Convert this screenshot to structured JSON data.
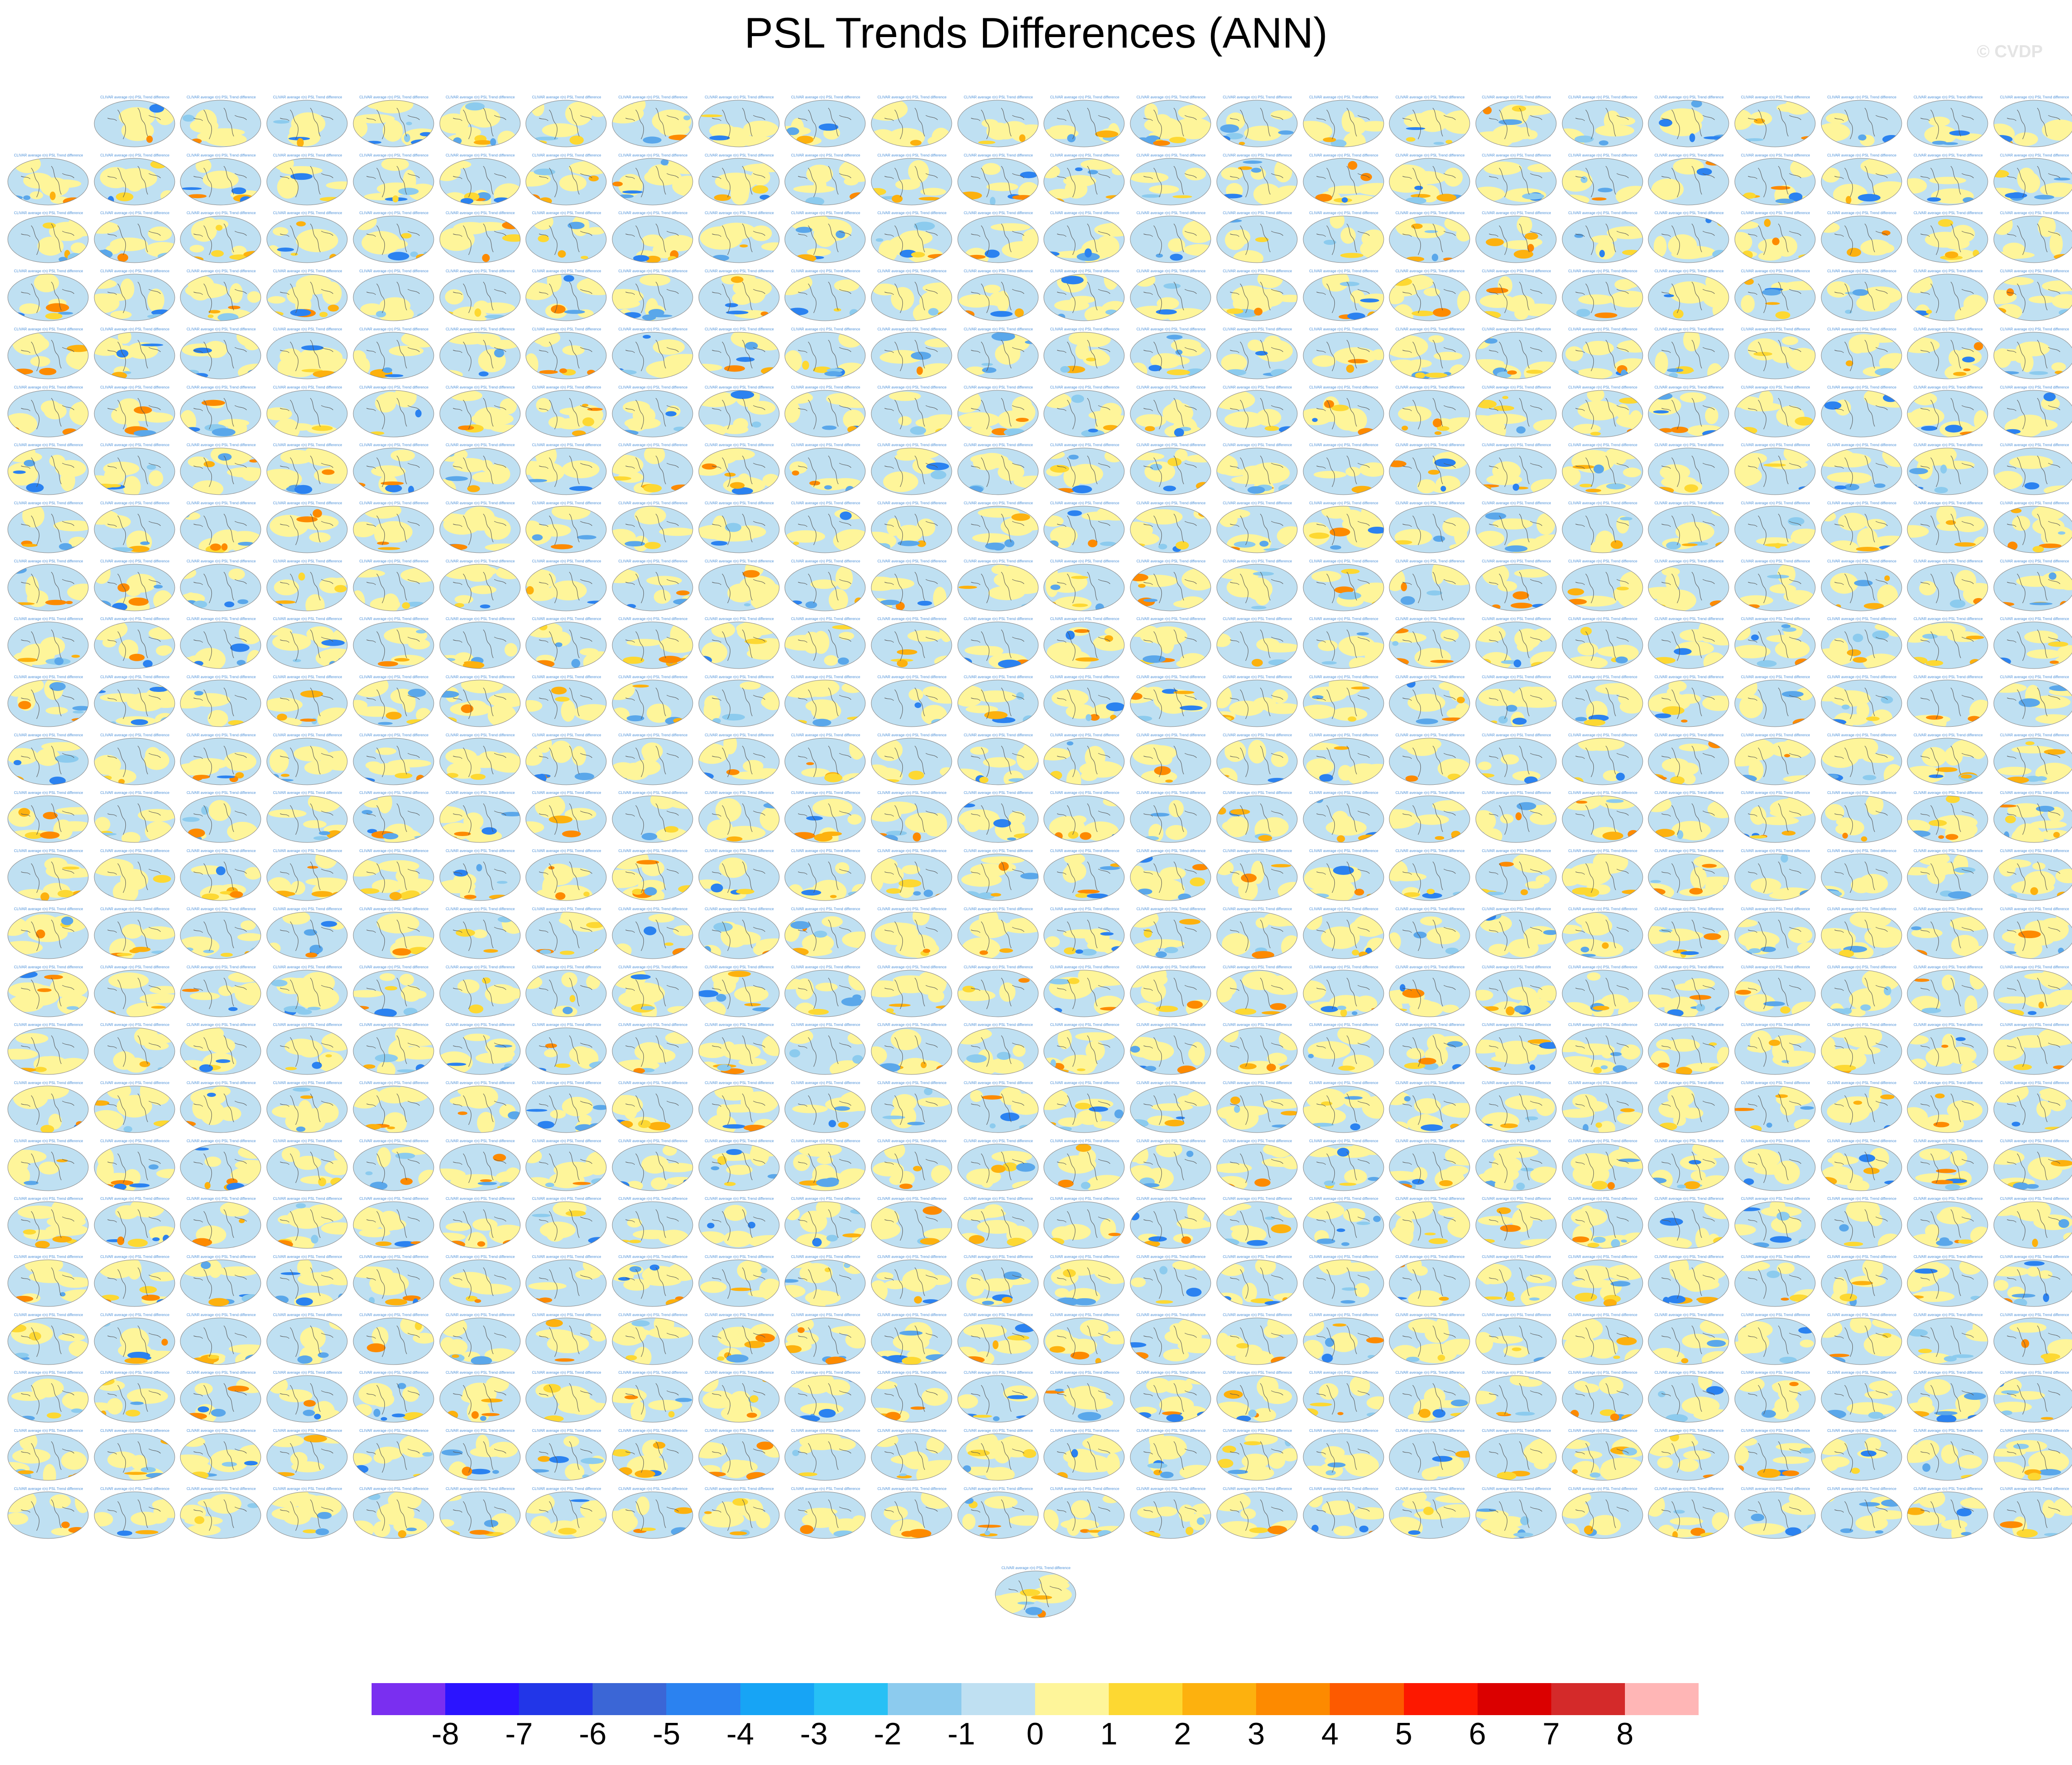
{
  "title": "PSL Trends Differences (ANN)",
  "watermark": "© CVDP",
  "chart_data": {
    "type": "heatmap",
    "description_grid": {
      "rows": 25,
      "columns": 24,
      "first_row_columns": 23,
      "extra_centered_panel": true
    },
    "panel_caption": "CLIVAR average r(n) PSL Trend difference",
    "colorbar": {
      "levels": [
        "-8",
        "-7",
        "-6",
        "-5",
        "-4",
        "-3",
        "-2",
        "-1",
        "0",
        "1",
        "2",
        "3",
        "4",
        "5",
        "6",
        "7",
        "8"
      ],
      "colors": [
        "#7a2ff0",
        "#2b14ff",
        "#2236e8",
        "#3b66d6",
        "#2b82f0",
        "#17a4f5",
        "#27c0f5",
        "#8ccbee",
        "#bfe0f2",
        "#fef59a",
        "#fdd832",
        "#fdb10e",
        "#fd8a00",
        "#fd5a00",
        "#fd1800",
        "#db0000",
        "#d42a2a",
        "#ffb6b6"
      ]
    }
  }
}
